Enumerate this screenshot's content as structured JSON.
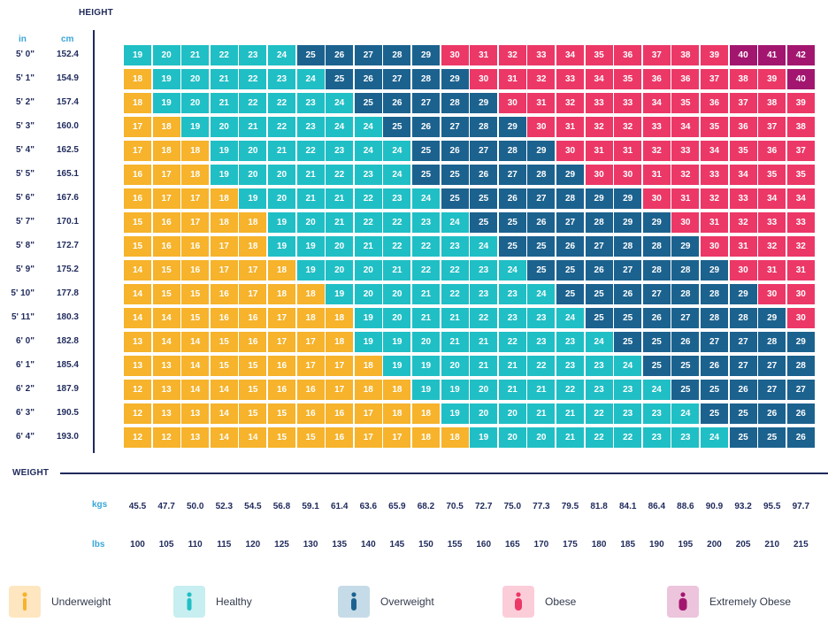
{
  "chart_data": {
    "type": "heatmap",
    "y_title": "HEIGHT",
    "x_title": "WEIGHT",
    "height_units": {
      "in": "in",
      "cm": "cm"
    },
    "weight_units": {
      "kg": "kgs",
      "lb": "lbs"
    },
    "heights_in": [
      "5' 0\"",
      "5' 1\"",
      "5' 2\"",
      "5' 3\"",
      "5' 4\"",
      "5' 5\"",
      "5' 6\"",
      "5' 7\"",
      "5' 8\"",
      "5' 9\"",
      "5' 10\"",
      "5' 11\"",
      "6' 0\"",
      "6' 1\"",
      "6' 2\"",
      "6' 3\"",
      "6' 4\""
    ],
    "heights_cm": [
      "152.4",
      "154.9",
      "157.4",
      "160.0",
      "162.5",
      "165.1",
      "167.6",
      "170.1",
      "172.7",
      "175.2",
      "177.8",
      "180.3",
      "182.8",
      "185.4",
      "187.9",
      "190.5",
      "193.0"
    ],
    "weights_kg": [
      "45.5",
      "47.7",
      "50.0",
      "52.3",
      "54.5",
      "56.8",
      "59.1",
      "61.4",
      "63.6",
      "65.9",
      "68.2",
      "70.5",
      "72.7",
      "75.0",
      "77.3",
      "79.5",
      "81.8",
      "84.1",
      "86.4",
      "88.6",
      "90.9",
      "93.2",
      "95.5",
      "97.7"
    ],
    "weights_lb": [
      "100",
      "105",
      "110",
      "115",
      "120",
      "125",
      "130",
      "135",
      "140",
      "145",
      "150",
      "155",
      "160",
      "165",
      "170",
      "175",
      "180",
      "185",
      "190",
      "195",
      "200",
      "205",
      "210",
      "215"
    ],
    "values": [
      [
        19,
        20,
        21,
        22,
        23,
        24,
        25,
        26,
        27,
        28,
        29,
        30,
        31,
        32,
        33,
        34,
        35,
        36,
        37,
        38,
        39,
        40,
        41,
        42
      ],
      [
        18,
        19,
        20,
        21,
        22,
        23,
        24,
        25,
        26,
        27,
        28,
        29,
        30,
        31,
        32,
        33,
        34,
        35,
        36,
        36,
        37,
        38,
        39,
        40
      ],
      [
        18,
        19,
        20,
        21,
        22,
        22,
        23,
        24,
        25,
        26,
        27,
        28,
        29,
        30,
        31,
        32,
        33,
        33,
        34,
        35,
        36,
        37,
        38,
        39
      ],
      [
        17,
        18,
        19,
        20,
        21,
        22,
        23,
        24,
        24,
        25,
        26,
        27,
        28,
        29,
        30,
        31,
        32,
        32,
        33,
        34,
        35,
        36,
        37,
        38
      ],
      [
        17,
        18,
        18,
        19,
        20,
        21,
        22,
        23,
        24,
        24,
        25,
        26,
        27,
        28,
        29,
        30,
        31,
        31,
        32,
        33,
        34,
        35,
        36,
        37
      ],
      [
        16,
        17,
        18,
        19,
        20,
        20,
        21,
        22,
        23,
        24,
        25,
        25,
        26,
        27,
        28,
        29,
        30,
        30,
        31,
        32,
        33,
        34,
        35,
        35
      ],
      [
        16,
        17,
        17,
        18,
        19,
        20,
        21,
        21,
        22,
        23,
        24,
        25,
        25,
        26,
        27,
        28,
        29,
        29,
        30,
        31,
        32,
        33,
        34,
        34
      ],
      [
        15,
        16,
        17,
        18,
        18,
        19,
        20,
        21,
        22,
        22,
        23,
        24,
        25,
        25,
        26,
        27,
        28,
        29,
        29,
        30,
        31,
        32,
        33,
        33
      ],
      [
        15,
        16,
        16,
        17,
        18,
        19,
        19,
        20,
        21,
        22,
        22,
        23,
        24,
        25,
        25,
        26,
        27,
        28,
        28,
        29,
        30,
        31,
        32,
        32
      ],
      [
        14,
        15,
        16,
        17,
        17,
        18,
        19,
        20,
        20,
        21,
        22,
        22,
        23,
        24,
        25,
        25,
        26,
        27,
        28,
        28,
        29,
        30,
        31,
        31
      ],
      [
        14,
        15,
        15,
        16,
        17,
        18,
        18,
        19,
        20,
        20,
        21,
        22,
        23,
        23,
        24,
        25,
        25,
        26,
        27,
        28,
        28,
        29,
        30,
        30
      ],
      [
        14,
        14,
        15,
        16,
        16,
        17,
        18,
        18,
        19,
        20,
        21,
        21,
        22,
        23,
        23,
        24,
        25,
        25,
        26,
        27,
        28,
        28,
        29,
        30
      ],
      [
        13,
        14,
        14,
        15,
        16,
        17,
        17,
        18,
        19,
        19,
        20,
        21,
        21,
        22,
        23,
        23,
        24,
        25,
        25,
        26,
        27,
        27,
        28,
        29
      ],
      [
        13,
        13,
        14,
        15,
        15,
        16,
        17,
        17,
        18,
        19,
        19,
        20,
        21,
        21,
        22,
        23,
        23,
        24,
        25,
        25,
        26,
        27,
        27,
        28
      ],
      [
        12,
        13,
        14,
        14,
        15,
        16,
        16,
        17,
        18,
        18,
        19,
        19,
        20,
        21,
        21,
        22,
        23,
        23,
        24,
        25,
        25,
        26,
        27,
        27
      ],
      [
        12,
        13,
        13,
        14,
        15,
        15,
        16,
        16,
        17,
        18,
        18,
        19,
        20,
        20,
        21,
        21,
        22,
        23,
        23,
        24,
        25,
        25,
        26,
        26
      ],
      [
        12,
        12,
        13,
        14,
        14,
        15,
        15,
        16,
        17,
        17,
        18,
        18,
        19,
        20,
        20,
        21,
        22,
        22,
        23,
        23,
        24,
        25,
        25,
        26
      ]
    ],
    "categories": [
      {
        "name": "Underweight",
        "min": 0,
        "max": 18,
        "color": "#f6b32b"
      },
      {
        "name": "Healthy",
        "min": 19,
        "max": 24,
        "color": "#20bfc5"
      },
      {
        "name": "Overweight",
        "min": 25,
        "max": 29,
        "color": "#1c628f"
      },
      {
        "name": "Obese",
        "min": 30,
        "max": 39,
        "color": "#ec3867"
      },
      {
        "name": "Extremely Obese",
        "min": 40,
        "max": 99,
        "color": "#a3166f"
      }
    ],
    "legend_swatch_bg": [
      "#fde6c0",
      "#c7eef0",
      "#c6dbe8",
      "#fbcdd8",
      "#ecc4dc"
    ]
  }
}
